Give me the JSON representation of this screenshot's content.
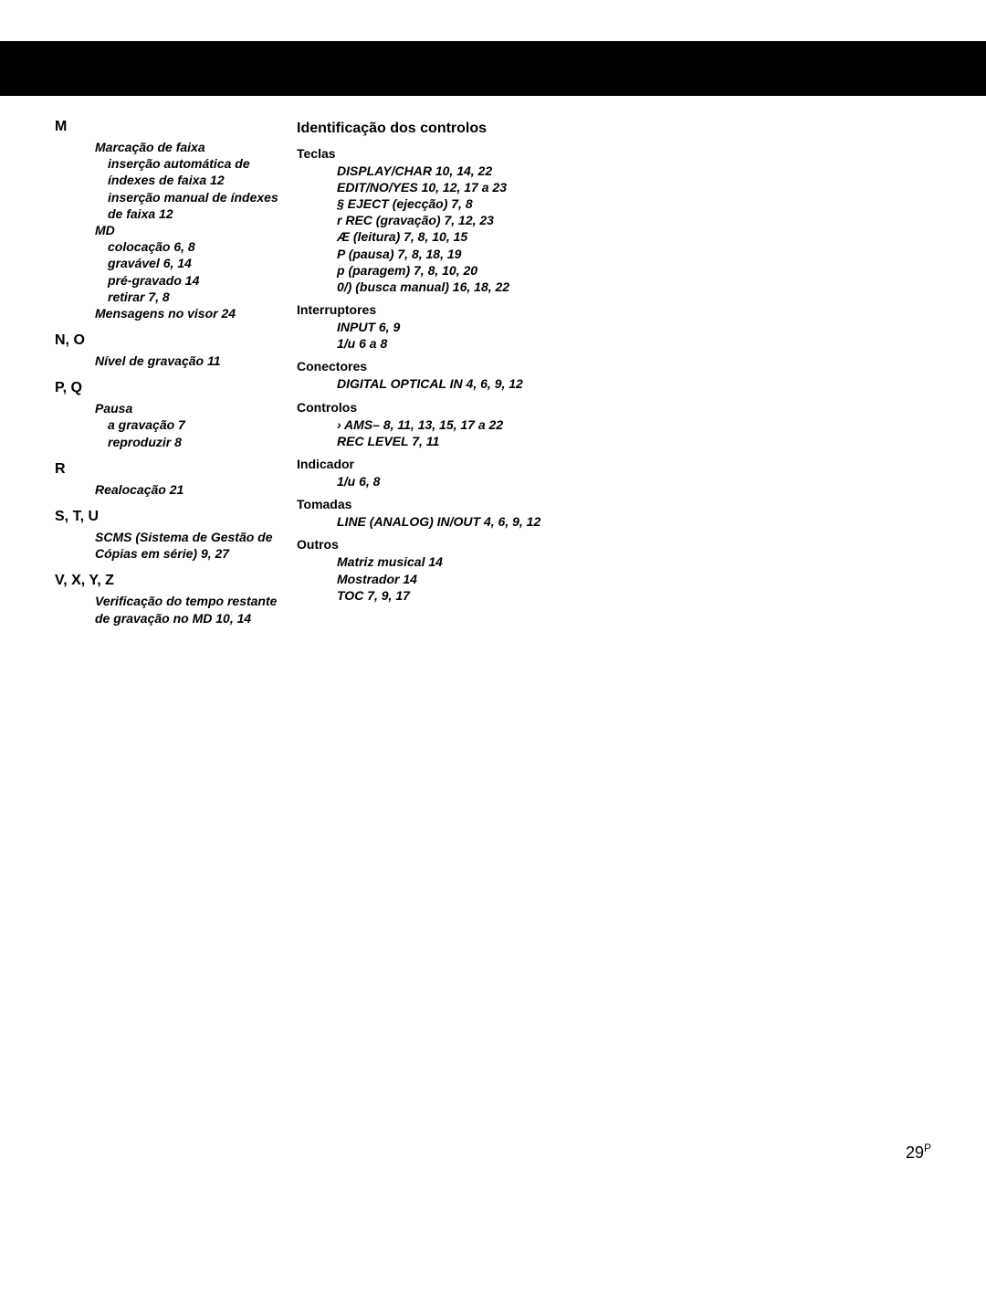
{
  "page_number": "29",
  "page_superscript": "P",
  "left_column": {
    "sections": [
      {
        "head": "M",
        "groups": [
          {
            "label": "Marcação de faixa",
            "lines": [
              "inserção automática de índexes de faixa  12",
              "inserção manual de índexes de faixa  12"
            ]
          },
          {
            "label": "MD",
            "lines": [
              "colocação  6, 8",
              "gravável  6, 14",
              "pré-gravado  14",
              "retirar  7, 8"
            ]
          },
          {
            "label": "Mensagens no visor  24",
            "lines": []
          }
        ]
      },
      {
        "head": "N, O",
        "groups": [
          {
            "label": "Nível de gravação  11",
            "lines": []
          }
        ]
      },
      {
        "head": "P, Q",
        "groups": [
          {
            "label": "Pausa",
            "lines": [
              "a gravação  7",
              "reproduzir  8"
            ]
          }
        ]
      },
      {
        "head": "R",
        "groups": [
          {
            "label": "Realocação  21",
            "lines": []
          }
        ]
      },
      {
        "head": "S, T, U",
        "groups": [
          {
            "label": "SCMS (Sistema de Gestão de Cópias em série)  9, 27",
            "lines": []
          }
        ]
      },
      {
        "head": "V, X, Y, Z",
        "groups": [
          {
            "label": "Verificação do tempo restante de gravação no MD  10, 14",
            "lines": []
          }
        ]
      }
    ]
  },
  "right_column": {
    "main_head": "Identificação dos controlos",
    "groups": [
      {
        "sub": "Teclas",
        "lines": [
          "DISPLAY/CHAR  10, 14, 22",
          "EDIT/NO/YES  10, 12, 17 a 23",
          "§  EJECT (ejecção)  7, 8",
          "r  REC (gravação)  7, 12, 23",
          "Æ  (leitura)  7, 8, 10, 15",
          "P  (pausa)  7, 8, 18, 19",
          "p  (paragem)  7, 8, 10, 20",
          "0/)        (busca manual) 16, 18, 22"
        ]
      },
      {
        "sub": "Interruptores",
        "lines": [
          "INPUT  6, 9",
          "1/u  6 a 8"
        ]
      },
      {
        "sub": "Conectores",
        "lines": [
          "DIGITAL OPTICAL IN  4, 6, 9, 12"
        ]
      },
      {
        "sub": "Controlos",
        "lines": [
          "›     AMS–      8, 11, 13, 15, 17 a 22",
          "REC LEVEL  7, 11"
        ]
      },
      {
        "sub": "Indicador",
        "lines": [
          "1/u  6, 8"
        ]
      },
      {
        "sub": "Tomadas",
        "lines": [
          "LINE (ANALOG) IN/OUT 4, 6, 9, 12"
        ]
      },
      {
        "sub": "Outros",
        "lines": [
          "Matriz musical  14",
          "Mostrador  14",
          "TOC  7, 9, 17"
        ]
      }
    ]
  }
}
